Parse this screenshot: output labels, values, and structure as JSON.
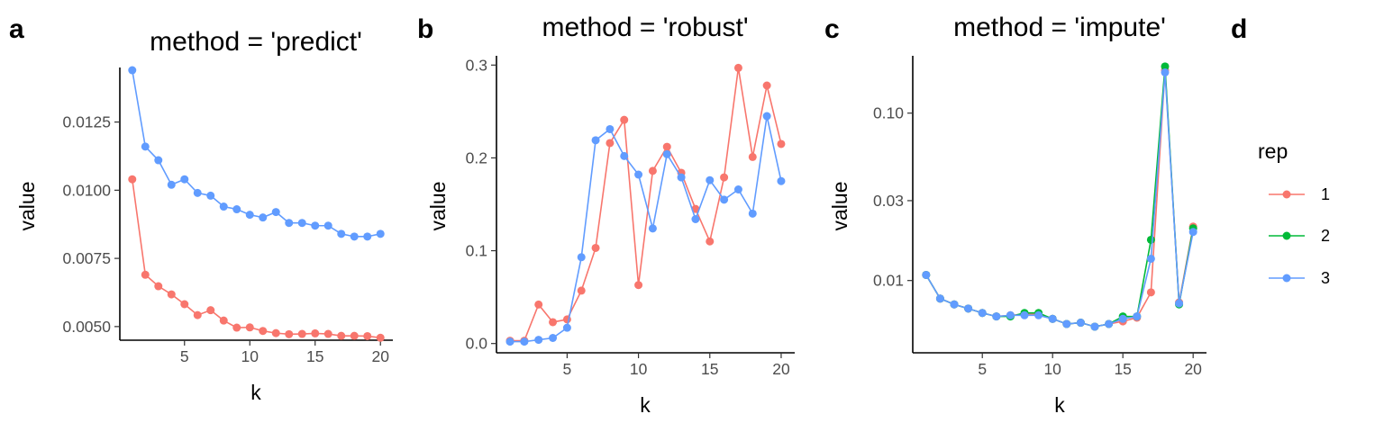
{
  "colors": {
    "rep1": "#F8766D",
    "rep2": "#00BA38",
    "rep3": "#619CFF"
  },
  "legend": {
    "title": "rep",
    "items": [
      {
        "label": "1",
        "color": "#F8766D"
      },
      {
        "label": "2",
        "color": "#00BA38"
      },
      {
        "label": "3",
        "color": "#619CFF"
      }
    ]
  },
  "panels": {
    "a": {
      "tag": "a",
      "title": "method = 'predict'",
      "xlabel": "k",
      "ylabel": "value"
    },
    "b": {
      "tag": "b",
      "title": "method = 'robust'",
      "xlabel": "k",
      "ylabel": "value"
    },
    "c": {
      "tag": "c",
      "title": "method = 'impute'",
      "xlabel": "k",
      "ylabel": "value"
    },
    "d": {
      "tag": "d"
    }
  },
  "chart_data": [
    {
      "type": "line",
      "panel": "a",
      "title": "method = 'predict'",
      "xlabel": "k",
      "ylabel": "value",
      "xlim": [
        1,
        20
      ],
      "ylim": [
        0.0045,
        0.0145
      ],
      "xticks": [
        5,
        10,
        15,
        20
      ],
      "yticks": [
        0.005,
        0.0075,
        0.01,
        0.0125
      ],
      "ytick_labels": [
        "0.0050",
        "0.0075",
        "0.0100",
        "0.0125"
      ],
      "x": [
        1,
        2,
        3,
        4,
        5,
        6,
        7,
        8,
        9,
        10,
        11,
        12,
        13,
        14,
        15,
        16,
        17,
        18,
        19,
        20
      ],
      "series": [
        {
          "name": "1",
          "color": "#F8766D",
          "values": [
            0.0104,
            0.0069,
            0.00648,
            0.00618,
            0.00582,
            0.00542,
            0.0056,
            0.00522,
            0.00496,
            0.00497,
            0.00484,
            0.00476,
            0.00472,
            0.00473,
            0.00475,
            0.00473,
            0.00466,
            0.00466,
            0.00465,
            0.00459
          ]
        },
        {
          "name": "3",
          "color": "#619CFF",
          "values": [
            0.0144,
            0.0116,
            0.0111,
            0.0102,
            0.0104,
            0.0099,
            0.0098,
            0.0094,
            0.0093,
            0.0091,
            0.009,
            0.0092,
            0.0088,
            0.0088,
            0.0087,
            0.0087,
            0.0084,
            0.0083,
            0.0083,
            0.0084
          ]
        }
      ]
    },
    {
      "type": "line",
      "panel": "b",
      "title": "method = 'robust'",
      "xlabel": "k",
      "ylabel": "value",
      "xlim": [
        1,
        20
      ],
      "ylim": [
        -0.01,
        0.31
      ],
      "xticks": [
        5,
        10,
        15,
        20
      ],
      "yticks": [
        0.0,
        0.1,
        0.2,
        0.3
      ],
      "ytick_labels": [
        "0.0",
        "0.1",
        "0.2",
        "0.3"
      ],
      "x": [
        1,
        2,
        3,
        4,
        5,
        6,
        7,
        8,
        9,
        10,
        11,
        12,
        13,
        14,
        15,
        16,
        17,
        18,
        19,
        20
      ],
      "series": [
        {
          "name": "1",
          "color": "#F8766D",
          "values": [
            0.003,
            0.003,
            0.042,
            0.023,
            0.026,
            0.057,
            0.103,
            0.216,
            0.241,
            0.063,
            0.186,
            0.212,
            0.184,
            0.145,
            0.11,
            0.179,
            0.297,
            0.201,
            0.278,
            0.215
          ]
        },
        {
          "name": "3",
          "color": "#619CFF",
          "values": [
            0.002,
            0.002,
            0.004,
            0.006,
            0.017,
            0.093,
            0.219,
            0.231,
            0.202,
            0.182,
            0.124,
            0.204,
            0.179,
            0.134,
            0.176,
            0.155,
            0.166,
            0.14,
            0.245,
            0.175
          ]
        }
      ]
    },
    {
      "type": "line",
      "panel": "c",
      "title": "method = 'impute'",
      "xlabel": "k",
      "ylabel": "value",
      "yscale": "log",
      "xlim": [
        1,
        20
      ],
      "ylim": [
        0.0037,
        0.22
      ],
      "xticks": [
        5,
        10,
        15,
        20
      ],
      "yticks": [
        0.01,
        0.03,
        0.1
      ],
      "ytick_labels": [
        "0.01",
        "0.03",
        "0.10"
      ],
      "x": [
        1,
        2,
        3,
        4,
        5,
        6,
        7,
        8,
        9,
        10,
        11,
        12,
        13,
        14,
        15,
        16,
        17,
        18,
        19,
        20
      ],
      "series": [
        {
          "name": "1",
          "color": "#F8766D",
          "values": [
            0.0108,
            0.0078,
            0.0072,
            0.0068,
            0.0064,
            0.0061,
            0.0062,
            0.0063,
            0.0063,
            0.0059,
            0.0055,
            0.0056,
            0.0053,
            0.0055,
            0.0057,
            0.006,
            0.0085,
            0.18,
            0.0074,
            0.021
          ]
        },
        {
          "name": "2",
          "color": "#00BA38",
          "values": [
            0.0108,
            0.0078,
            0.0072,
            0.0068,
            0.0064,
            0.0061,
            0.0061,
            0.0064,
            0.0064,
            0.0059,
            0.0055,
            0.0056,
            0.0053,
            0.0055,
            0.0061,
            0.0061,
            0.0175,
            0.19,
            0.0072,
            0.0205
          ]
        },
        {
          "name": "3",
          "color": "#619CFF",
          "values": [
            0.0108,
            0.0078,
            0.0072,
            0.0068,
            0.0064,
            0.0061,
            0.0062,
            0.0062,
            0.0062,
            0.0059,
            0.0055,
            0.0056,
            0.0053,
            0.0055,
            0.0059,
            0.0061,
            0.0135,
            0.175,
            0.0073,
            0.0195
          ]
        }
      ]
    }
  ]
}
